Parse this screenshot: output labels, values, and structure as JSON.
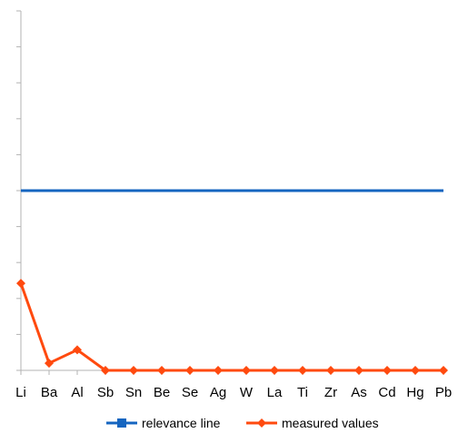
{
  "chart_data": {
    "type": "line",
    "title": "",
    "xlabel": "",
    "ylabel": "",
    "ylim": [
      0,
      10
    ],
    "grid": false,
    "legend_position": "bottom",
    "y_tick_count": 10,
    "categories": [
      "Li",
      "Ba",
      "Al",
      "Sb",
      "Sn",
      "Be",
      "Se",
      "Ag",
      "W",
      "La",
      "Ti",
      "Zr",
      "As",
      "Cd",
      "Hg",
      "Pb"
    ],
    "series": [
      {
        "name": "relevance line",
        "color": "#1565c0",
        "marker": "square",
        "values": [
          5,
          5,
          5,
          5,
          5,
          5,
          5,
          5,
          5,
          5,
          5,
          5,
          5,
          5,
          5,
          5
        ]
      },
      {
        "name": "measured values",
        "color": "#ff4a0f",
        "marker": "diamond",
        "values": [
          2.42,
          0.2,
          0.57,
          0,
          0,
          0,
          0,
          0,
          0,
          0,
          0,
          0,
          0,
          0,
          0,
          0
        ]
      }
    ]
  }
}
